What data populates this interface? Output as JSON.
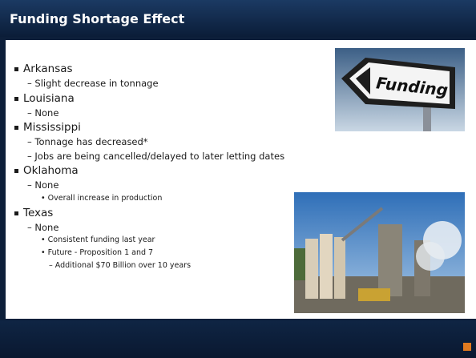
{
  "header": {
    "title": "Funding Shortage Effect"
  },
  "bullets": [
    {
      "text": "Arkansas",
      "items": [
        {
          "text": "Slight decrease in tonnage",
          "items": []
        }
      ]
    },
    {
      "text": "Louisiana",
      "items": [
        {
          "text": "None",
          "items": []
        }
      ]
    },
    {
      "text": "Mississippi",
      "items": [
        {
          "text": "Tonnage has decreased*",
          "items": []
        },
        {
          "text": "Jobs are being cancelled/delayed to later letting dates",
          "items": []
        }
      ]
    },
    {
      "text": "Oklahoma",
      "items": [
        {
          "text": "None",
          "items": [
            {
              "text": "Overall increase in production",
              "items": []
            }
          ]
        }
      ]
    },
    {
      "text": "Texas",
      "items": [
        {
          "text": "None",
          "items": [
            {
              "text": "Consistent funding last year",
              "items": []
            },
            {
              "text": "Future - Proposition 1 and 7",
              "items": [
                {
                  "text": "Additional $70 Billion over 10 years"
                }
              ]
            }
          ]
        }
      ]
    }
  ],
  "images": {
    "sign_text": "Funding"
  }
}
